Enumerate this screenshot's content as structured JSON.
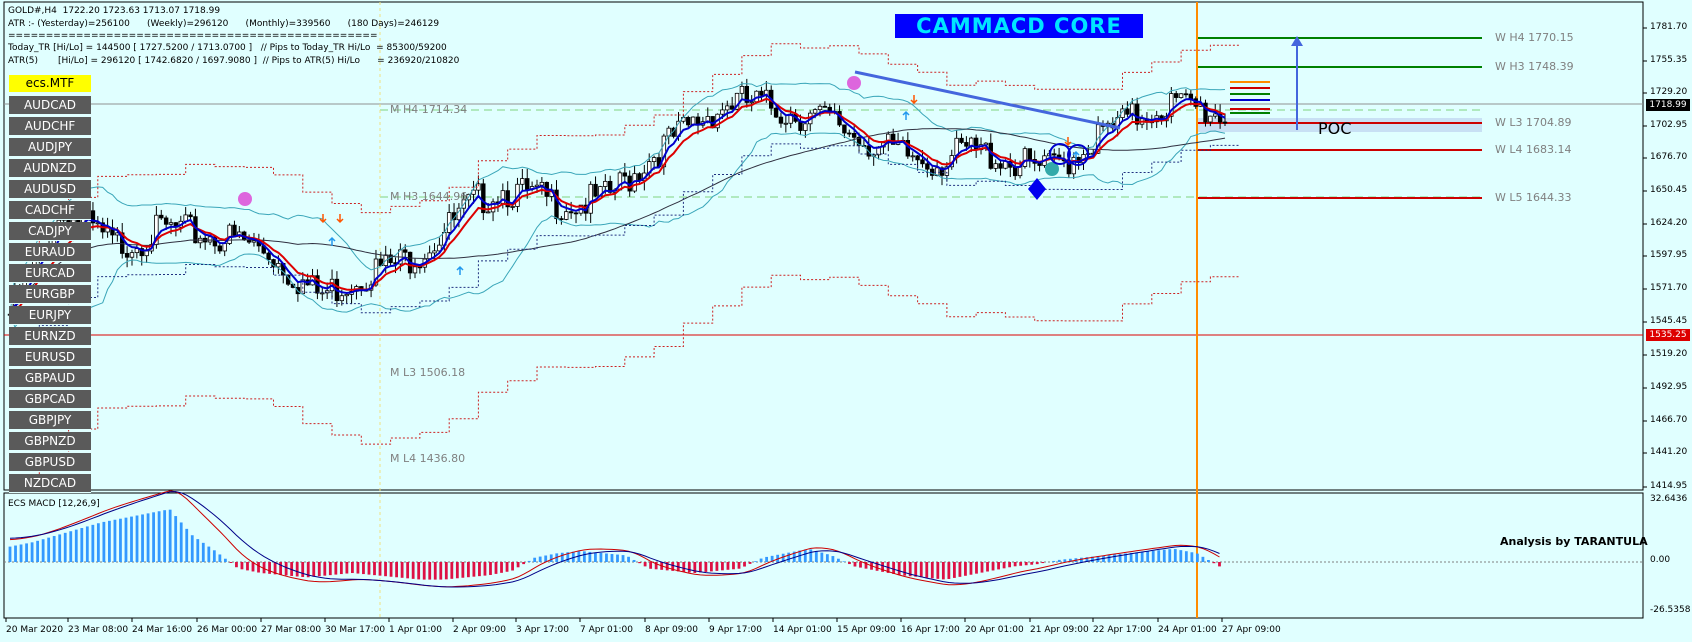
{
  "header": {
    "symbol_line": "GOLD#,H4  1722.20 1723.63 1713.07 1718.99",
    "atr_line": "ATR :- (Yesterday)=256100      (Weekly)=296120      (Monthly)=339560      (180 Days)=246129",
    "separator": "=================================================",
    "today_tr_line": "Today_TR [Hi/Lo] = 144500 [ 1727.5200 / 1713.0700 ]   // Pips to Today_TR Hi/Lo  = 85300/59200",
    "atr5_line": "ATR(5)       [Hi/Lo] = 296120 [ 1742.6820 / 1697.9080 ]  // Pips to ATR(5) Hi/Lo      = 236920/210820"
  },
  "title_banner": "CAMMACD CORE",
  "mtf_label": "ecs.MTF",
  "pair_buttons": [
    "AUDCAD",
    "AUDCHF",
    "AUDJPY",
    "AUDNZD",
    "AUDUSD",
    "CADCHF",
    "CADJPY",
    "EURAUD",
    "EURCAD",
    "EURGBP",
    "EURJPY",
    "EURNZD",
    "EURUSD",
    "GBPAUD",
    "GBPCAD",
    "GBPJPY",
    "GBPNZD",
    "GBPUSD",
    "NZDCAD"
  ],
  "price_axis": [
    "1781.70",
    "1755.35",
    "1729.20",
    "1702.95",
    "1676.70",
    "1650.45",
    "1624.20",
    "1597.95",
    "1571.70",
    "1545.45",
    "1519.20",
    "1492.95",
    "1466.70",
    "1441.20",
    "1414.95"
  ],
  "current_price_tag": "1718.99",
  "red_line_tag": "1535.25",
  "monthly_levels": [
    {
      "label": "M  H4 1714.34"
    },
    {
      "label": "M  H3 1644.96"
    },
    {
      "label": "M  L3 1506.18"
    },
    {
      "label": "M  L4 1436.80"
    }
  ],
  "weekly_levels": [
    {
      "label": "W  H4 1770.15",
      "color": "#008000"
    },
    {
      "label": "W  H3 1748.39",
      "color": "#008000"
    },
    {
      "label": "W  L3 1704.89",
      "color": "#cc0000"
    },
    {
      "label": "W  L4 1683.14",
      "color": "#cc0000"
    },
    {
      "label": "W  L5 1644.33",
      "color": "#cc0000"
    }
  ],
  "poc_label": "POC",
  "macd": {
    "label": "ECS MACD [12,26,9]",
    "axis": [
      "32.6436",
      "0.00",
      "-26.5358"
    ],
    "annotation": "Analysis by TARANTULA"
  },
  "time_axis": [
    "20 Mar 2020",
    "23 Mar 08:00",
    "24 Mar 16:00",
    "26 Mar 00:00",
    "27 Mar 08:00",
    "30 Mar 17:00",
    "1 Apr 01:00",
    "2 Apr 09:00",
    "3 Apr 17:00",
    "7 Apr 01:00",
    "8 Apr 09:00",
    "9 Apr 17:00",
    "14 Apr 01:00",
    "15 Apr 09:00",
    "16 Apr 17:00",
    "20 Apr 01:00",
    "21 Apr 09:00",
    "22 Apr 17:00",
    "24 Apr 01:00",
    "27 Apr 09:00"
  ],
  "colors": {
    "background": "#e0ffff",
    "fast_ma": "#0000cc",
    "slow_ma": "#dd0000",
    "bollinger": "#3aa6b9",
    "session_line": "#ff8c00",
    "macd_pos": "#3399ff",
    "macd_neg": "#dd1144"
  },
  "chart_data": {
    "type": "candlestick",
    "symbol": "GOLD#",
    "timeframe": "H4",
    "ohlc_last": {
      "open": 1722.2,
      "high": 1723.63,
      "low": 1713.07,
      "close": 1718.99
    },
    "ylim": [
      1414.95,
      1790
    ],
    "close_path": [
      1560,
      1600,
      1640,
      1630,
      1615,
      1620,
      1628,
      1625,
      1622,
      1618,
      1610,
      1590,
      1575,
      1585,
      1595,
      1600,
      1612,
      1630,
      1650,
      1660,
      1655,
      1650,
      1648,
      1652,
      1670,
      1690,
      1705,
      1720,
      1730,
      1728,
      1722,
      1718,
      1712,
      1700,
      1690,
      1685,
      1682,
      1690,
      1688,
      1680,
      1675,
      1685,
      1700,
      1712,
      1722,
      1728,
      1724,
      1719
    ],
    "macd_histogram": [
      7,
      9,
      12,
      15,
      18,
      20,
      22,
      24,
      12,
      5,
      -3,
      -5,
      -6,
      -7,
      -6,
      -5,
      -6,
      -7,
      -8,
      -8,
      -7,
      -6,
      -4,
      2,
      4,
      5,
      4,
      3,
      -3,
      -4,
      -5,
      -4,
      -3,
      2,
      4,
      6,
      3,
      -2,
      -4,
      -6,
      -7,
      -8,
      -6,
      -4,
      -2,
      -1,
      1,
      2,
      3,
      4,
      5,
      6,
      4,
      -2
    ]
  }
}
